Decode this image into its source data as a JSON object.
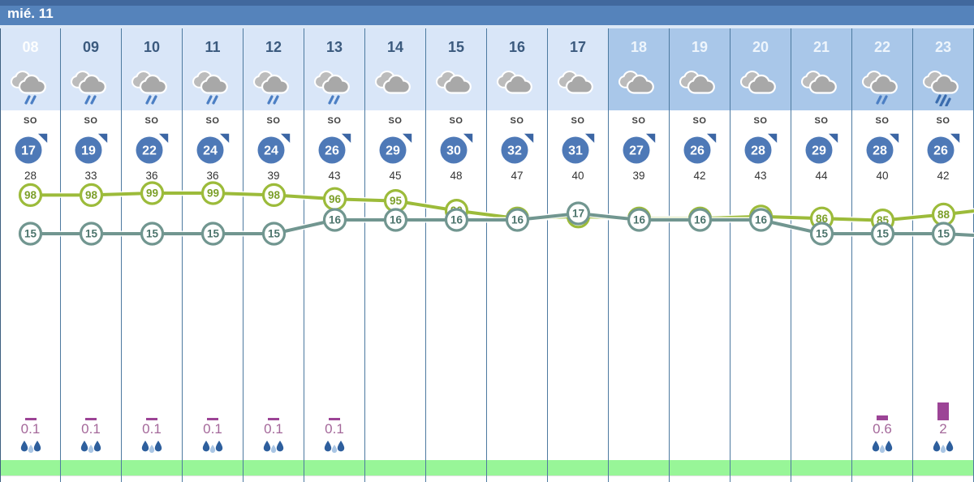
{
  "title_bar": {
    "date": "mié. 11"
  },
  "columns": [
    {
      "hour": "08",
      "header_style": "highlight",
      "icon": "rain",
      "wind_dir": "SO",
      "wind_speed": "17",
      "gust": "28",
      "precip": "0.1"
    },
    {
      "hour": "09",
      "header_style": "day",
      "icon": "rain",
      "wind_dir": "SO",
      "wind_speed": "19",
      "gust": "33",
      "precip": "0.1"
    },
    {
      "hour": "10",
      "header_style": "day",
      "icon": "rain",
      "wind_dir": "SO",
      "wind_speed": "22",
      "gust": "36",
      "precip": "0.1"
    },
    {
      "hour": "11",
      "header_style": "day",
      "icon": "rain",
      "wind_dir": "SO",
      "wind_speed": "24",
      "gust": "36",
      "precip": "0.1"
    },
    {
      "hour": "12",
      "header_style": "day",
      "icon": "rain",
      "wind_dir": "SO",
      "wind_speed": "24",
      "gust": "39",
      "precip": "0.1"
    },
    {
      "hour": "13",
      "header_style": "day",
      "icon": "rain",
      "wind_dir": "SO",
      "wind_speed": "26",
      "gust": "43",
      "precip": "0.1"
    },
    {
      "hour": "14",
      "header_style": "day",
      "icon": "cloud",
      "wind_dir": "SO",
      "wind_speed": "29",
      "gust": "45",
      "precip": ""
    },
    {
      "hour": "15",
      "header_style": "day",
      "icon": "cloud",
      "wind_dir": "SO",
      "wind_speed": "30",
      "gust": "48",
      "precip": ""
    },
    {
      "hour": "16",
      "header_style": "day",
      "icon": "cloud",
      "wind_dir": "SO",
      "wind_speed": "32",
      "gust": "47",
      "precip": ""
    },
    {
      "hour": "17",
      "header_style": "day",
      "icon": "cloud",
      "wind_dir": "SO",
      "wind_speed": "31",
      "gust": "40",
      "precip": ""
    },
    {
      "hour": "18",
      "header_style": "night",
      "icon": "cloud",
      "wind_dir": "SO",
      "wind_speed": "27",
      "gust": "39",
      "precip": ""
    },
    {
      "hour": "19",
      "header_style": "night",
      "icon": "cloud",
      "wind_dir": "SO",
      "wind_speed": "26",
      "gust": "42",
      "precip": ""
    },
    {
      "hour": "20",
      "header_style": "night",
      "icon": "cloud",
      "wind_dir": "SO",
      "wind_speed": "28",
      "gust": "43",
      "precip": ""
    },
    {
      "hour": "21",
      "header_style": "night",
      "icon": "cloud",
      "wind_dir": "SO",
      "wind_speed": "29",
      "gust": "44",
      "precip": ""
    },
    {
      "hour": "22",
      "header_style": "night",
      "icon": "light-rain",
      "wind_dir": "SO",
      "wind_speed": "28",
      "gust": "40",
      "precip": "0.6"
    },
    {
      "hour": "23",
      "header_style": "night",
      "icon": "heavy-rain",
      "wind_dir": "SO",
      "wind_speed": "26",
      "gust": "42",
      "precip": "2"
    }
  ],
  "chart_data": {
    "type": "line",
    "x": [
      "08",
      "09",
      "10",
      "11",
      "12",
      "13",
      "14",
      "15",
      "16",
      "17",
      "18",
      "19",
      "20",
      "21",
      "22",
      "23"
    ],
    "series": [
      {
        "name": "humidity_percent",
        "color": "#9cbb3a",
        "text_color": "#7da02b",
        "values": [
          98,
          98,
          99,
          99,
          98,
          96,
          95,
          90,
          86,
          87,
          86,
          86,
          87,
          86,
          85,
          88
        ]
      },
      {
        "name": "temperature_c",
        "color": "#719690",
        "text_color": "#4d756d",
        "values": [
          15,
          15,
          15,
          15,
          15,
          16,
          16,
          16,
          16,
          17,
          16,
          16,
          16,
          15,
          15,
          15
        ]
      }
    ],
    "legend_position": "none",
    "grid": "vertical-column-borders-only"
  },
  "colors": {
    "wind_badge": "#4e79b7",
    "wind_arrow": "#3c66a4",
    "precip_bar": "#9c4496",
    "precip_text": "#a4689a",
    "green_strip": "#98f698",
    "titlebar": "#5583bb",
    "day_header_bg": "#d9e6f8",
    "night_header_bg": "#a9c7e9"
  }
}
